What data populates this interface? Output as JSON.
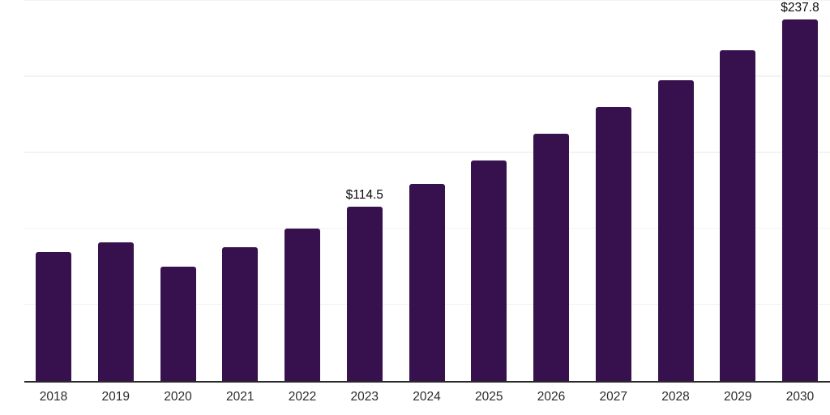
{
  "chart_data": {
    "type": "bar",
    "title": "",
    "xlabel": "",
    "ylabel": "",
    "categories": [
      "2018",
      "2019",
      "2020",
      "2021",
      "2022",
      "2023",
      "2024",
      "2025",
      "2026",
      "2027",
      "2028",
      "2029",
      "2030"
    ],
    "values": [
      85,
      91,
      75,
      88,
      100,
      114.5,
      129.5,
      145,
      162.5,
      180,
      198,
      217.5,
      237.8
    ],
    "value_labels": [
      "",
      "",
      "",
      "",
      "",
      "$114.5",
      "",
      "",
      "",
      "",
      "",
      "",
      "$237.8"
    ],
    "ylim": [
      0,
      250
    ],
    "gridline_values": [
      50,
      100,
      150,
      200,
      250
    ],
    "grid": "horizontal-only",
    "legend": "none",
    "axis_tick_labels_shown": "x-axis-only"
  },
  "style": {
    "bar_color": "#37114D",
    "grid_color": "#f3f3f3",
    "axis_line_color": "#2a2a2a",
    "tick_label_color": "#2b2b2b",
    "value_label_color": "#0a0a0a",
    "background_color": "#ffffff"
  }
}
